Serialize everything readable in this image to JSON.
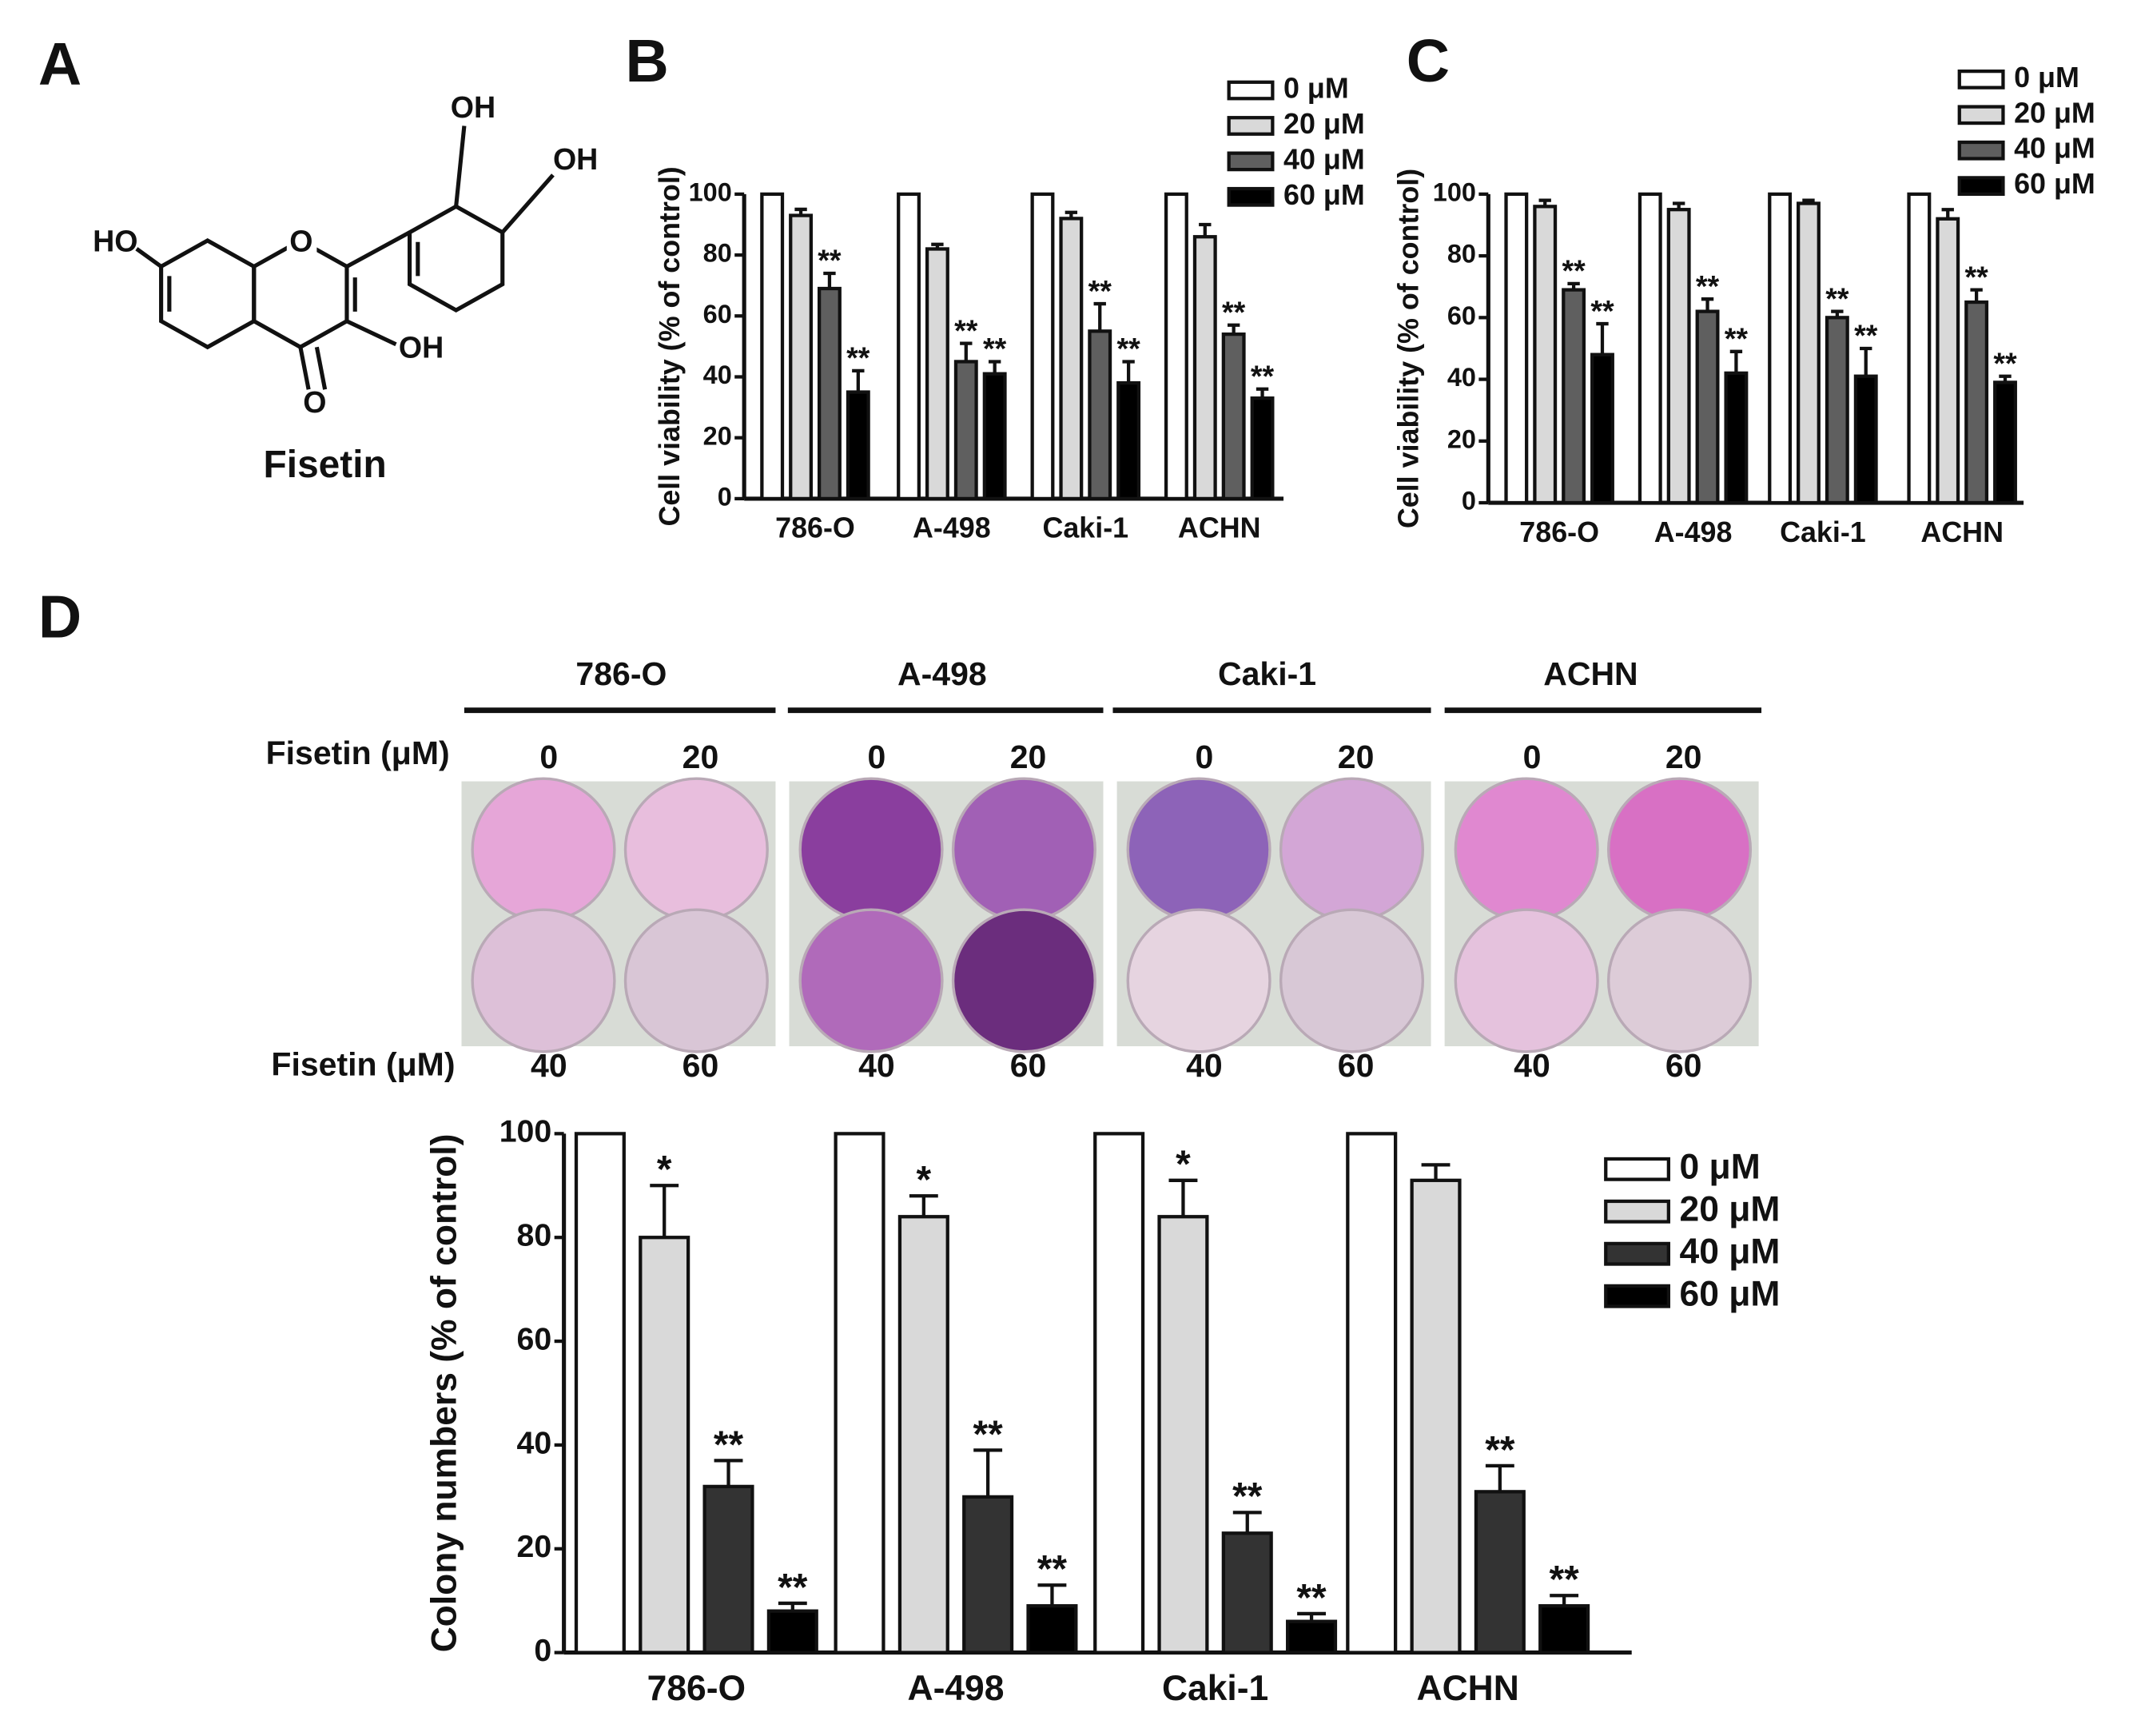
{
  "panel_labels": [
    "A",
    "B",
    "C",
    "D"
  ],
  "structure": {
    "name": "Fisetin",
    "atoms": [
      "HO",
      "O",
      "OH",
      "OH",
      "OH",
      "O"
    ]
  },
  "colony_plates": {
    "cell_lines": [
      "786-O",
      "A-498",
      "Caki-1",
      "ACHN"
    ],
    "top_row_label": "Fisetin (μM)",
    "top_doses": [
      "0",
      "20"
    ],
    "bottom_row_label": "Fisetin (μM)",
    "bottom_doses": [
      "40",
      "60"
    ]
  },
  "chart_data": [
    {
      "type": "bar",
      "y_label": "Cell viability (% of control)",
      "categories": [
        "786-O",
        "A-498",
        "Caki-1",
        "ACHN"
      ],
      "ylim": [
        0,
        100
      ],
      "yticks": [
        0,
        20,
        40,
        60,
        80,
        100
      ],
      "series": [
        {
          "name": "0 μM",
          "color": "#ffffff",
          "values": [
            100,
            100,
            100,
            100
          ],
          "errors": [
            0,
            0,
            0,
            0
          ],
          "labels": [
            null,
            null,
            null,
            null
          ]
        },
        {
          "name": "20 μM",
          "color": "#d9d9d9",
          "values": [
            93,
            82,
            92,
            86
          ],
          "errors": [
            2,
            1.5,
            2,
            4
          ],
          "labels": [
            null,
            null,
            null,
            null
          ]
        },
        {
          "name": "40 μM",
          "color": "#5f5f5f",
          "values": [
            69,
            45,
            55,
            54
          ],
          "errors": [
            5,
            6,
            9,
            3
          ],
          "labels": [
            "**",
            "**",
            "**",
            "**"
          ]
        },
        {
          "name": "60 μM",
          "color": "#000000",
          "values": [
            35,
            41,
            38,
            33
          ],
          "errors": [
            7,
            4,
            7,
            3
          ],
          "labels": [
            "**",
            "**",
            "**",
            "**"
          ]
        }
      ]
    },
    {
      "type": "bar",
      "y_label": "Cell viability (% of control)",
      "categories": [
        "786-O",
        "A-498",
        "Caki-1",
        "ACHN"
      ],
      "ylim": [
        0,
        100
      ],
      "yticks": [
        0,
        20,
        40,
        60,
        80,
        100
      ],
      "series": [
        {
          "name": "0 μM",
          "color": "#ffffff",
          "values": [
            100,
            100,
            100,
            100
          ],
          "errors": [
            0,
            0,
            0,
            0
          ],
          "labels": [
            null,
            null,
            null,
            null
          ]
        },
        {
          "name": "20 μM",
          "color": "#d9d9d9",
          "values": [
            96,
            95,
            97,
            92
          ],
          "errors": [
            2,
            2,
            1,
            3
          ],
          "labels": [
            null,
            null,
            null,
            null
          ]
        },
        {
          "name": "40 μM",
          "color": "#5f5f5f",
          "values": [
            69,
            62,
            60,
            65
          ],
          "errors": [
            2,
            4,
            2,
            4
          ],
          "labels": [
            "**",
            "**",
            "**",
            "**"
          ]
        },
        {
          "name": "60 μM",
          "color": "#000000",
          "values": [
            48,
            42,
            41,
            39
          ],
          "errors": [
            10,
            7,
            9,
            2
          ],
          "labels": [
            "**",
            "**",
            "**",
            "**"
          ]
        }
      ]
    },
    {
      "type": "bar",
      "y_label": "Colony numbers (% of control)",
      "categories": [
        "786-O",
        "A-498",
        "Caki-1",
        "ACHN"
      ],
      "ylim": [
        0,
        100
      ],
      "yticks": [
        0,
        20,
        40,
        60,
        80,
        100
      ],
      "series": [
        {
          "name": "0 μM",
          "color": "#ffffff",
          "values": [
            100,
            100,
            100,
            100
          ],
          "errors": [
            0,
            0,
            0,
            0
          ],
          "labels": [
            null,
            null,
            null,
            null
          ]
        },
        {
          "name": "20 μM",
          "color": "#d9d9d9",
          "values": [
            80,
            84,
            84,
            91
          ],
          "errors": [
            10,
            4,
            7,
            3
          ],
          "labels": [
            "*",
            "*",
            "*",
            null
          ]
        },
        {
          "name": "40 μM",
          "color": "#333333",
          "values": [
            32,
            30,
            23,
            31
          ],
          "errors": [
            5,
            9,
            4,
            5
          ],
          "labels": [
            "**",
            "**",
            "**",
            "**"
          ]
        },
        {
          "name": "60 μM",
          "color": "#000000",
          "values": [
            8,
            9,
            6,
            9
          ],
          "errors": [
            1.5,
            4,
            1.5,
            2
          ],
          "labels": [
            "**",
            "**",
            "**",
            "**"
          ]
        }
      ]
    }
  ]
}
